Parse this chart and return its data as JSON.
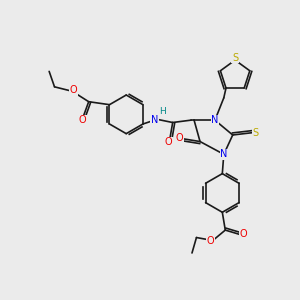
{
  "background_color": "#ebebeb",
  "atom_colors": {
    "C": "#1a1a1a",
    "N": "#0000ee",
    "O": "#ee0000",
    "S": "#bbaa00",
    "H": "#008888"
  },
  "bond_color": "#1a1a1a",
  "bond_width": 1.2,
  "fig_width": 3.0,
  "fig_height": 3.0,
  "font_size": 7.0,
  "xlim": [
    0,
    10
  ],
  "ylim": [
    0,
    10
  ]
}
